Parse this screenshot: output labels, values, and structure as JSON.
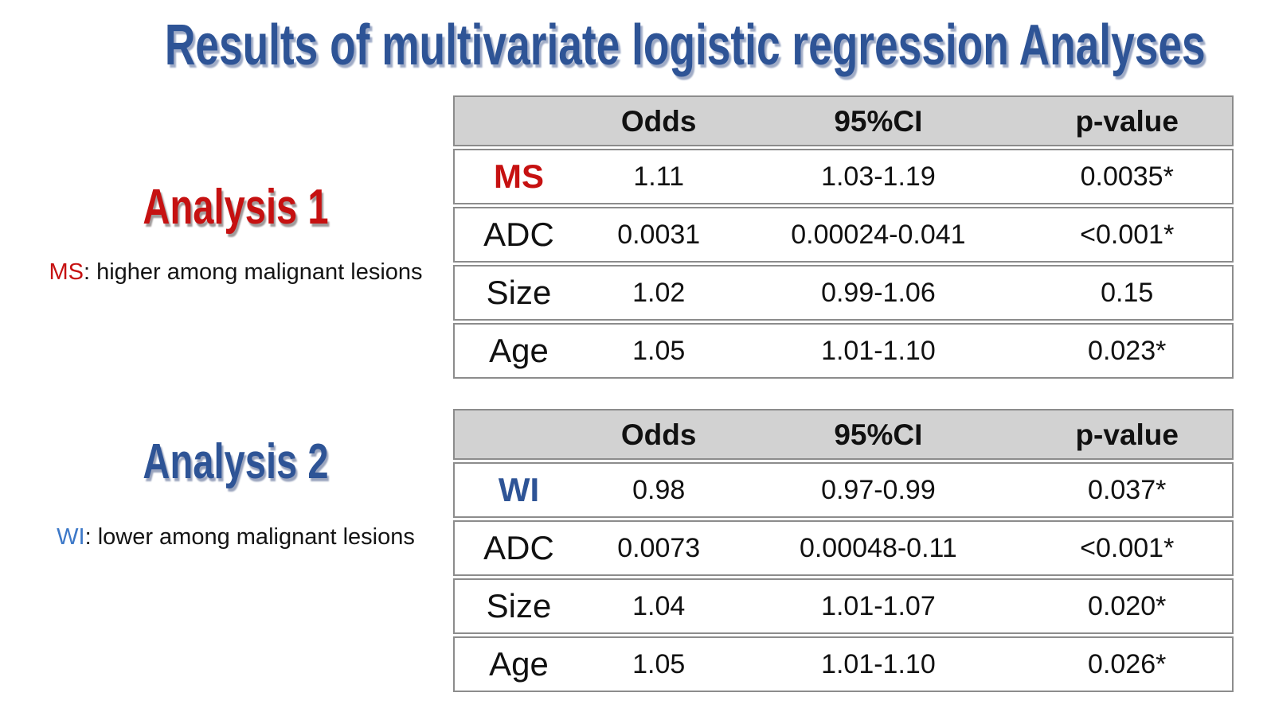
{
  "title": "Results of multivariate logistic regression Analyses",
  "colors": {
    "title_blue": "#2E5496",
    "accent_red": "#C61111",
    "accent_blue": "#2E5496",
    "note_term_blue": "#3C78C8",
    "table_header_bg": "#D2D2D2",
    "table_border": "#8C8C8C"
  },
  "analyses": [
    {
      "heading": "Analysis 1",
      "note_term": "MS",
      "note_rest": ": higher among malignant lesions",
      "table": {
        "headers": [
          "",
          "Odds",
          "95%CI",
          "p-value"
        ],
        "rows": [
          {
            "label": "MS",
            "odds": "1.11",
            "ci": "1.03-1.19",
            "p": "0.0035*"
          },
          {
            "label": "ADC",
            "odds": "0.0031",
            "ci": "0.00024-0.041",
            "p": "<0.001*"
          },
          {
            "label": "Size",
            "odds": "1.02",
            "ci": "0.99-1.06",
            "p": "0.15"
          },
          {
            "label": "Age",
            "odds": "1.05",
            "ci": "1.01-1.10",
            "p": "0.023*"
          }
        ]
      }
    },
    {
      "heading": "Analysis 2",
      "note_term": "WI",
      "note_rest": ": lower among malignant lesions",
      "table": {
        "headers": [
          "",
          "Odds",
          "95%CI",
          "p-value"
        ],
        "rows": [
          {
            "label": "WI",
            "odds": "0.98",
            "ci": "0.97-0.99",
            "p": "0.037*"
          },
          {
            "label": "ADC",
            "odds": "0.0073",
            "ci": "0.00048-0.11",
            "p": "<0.001*"
          },
          {
            "label": "Size",
            "odds": "1.04",
            "ci": "1.01-1.07",
            "p": "0.020*"
          },
          {
            "label": "Age",
            "odds": "1.05",
            "ci": "1.01-1.10",
            "p": "0.026*"
          }
        ]
      }
    }
  ]
}
